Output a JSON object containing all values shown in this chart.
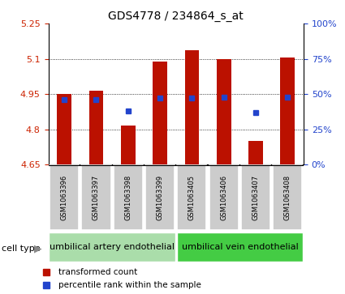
{
  "title": "GDS4778 / 234864_s_at",
  "samples": [
    "GSM1063396",
    "GSM1063397",
    "GSM1063398",
    "GSM1063399",
    "GSM1063405",
    "GSM1063406",
    "GSM1063407",
    "GSM1063408"
  ],
  "transformed_counts": [
    4.95,
    4.965,
    4.815,
    5.09,
    5.135,
    5.1,
    4.75,
    5.105
  ],
  "percentile_ranks": [
    46,
    46,
    38,
    47,
    47,
    48,
    37,
    48
  ],
  "ymin": 4.65,
  "ymax": 5.25,
  "yticks": [
    4.65,
    4.8,
    4.95,
    5.1,
    5.25
  ],
  "right_yticks": [
    0,
    25,
    50,
    75,
    100
  ],
  "bar_color": "#bb1100",
  "dot_color": "#2244cc",
  "bar_width": 0.45,
  "cell_type_groups": [
    {
      "label": "umbilical artery endothelial",
      "color": "#aaddaa",
      "n_samples": 4
    },
    {
      "label": "umbilical vein endothelial",
      "color": "#44cc44",
      "n_samples": 4
    }
  ],
  "legend_items": [
    {
      "label": "transformed count",
      "color": "#bb1100"
    },
    {
      "label": "percentile rank within the sample",
      "color": "#2244cc"
    }
  ],
  "title_fontsize": 10,
  "tick_fontsize": 8,
  "tick_label_color_left": "#cc2200",
  "tick_label_color_right": "#2244cc",
  "sample_label_fontsize": 6,
  "celltype_fontsize": 8,
  "legend_fontsize": 7.5,
  "gray_box_color": "#cccccc"
}
